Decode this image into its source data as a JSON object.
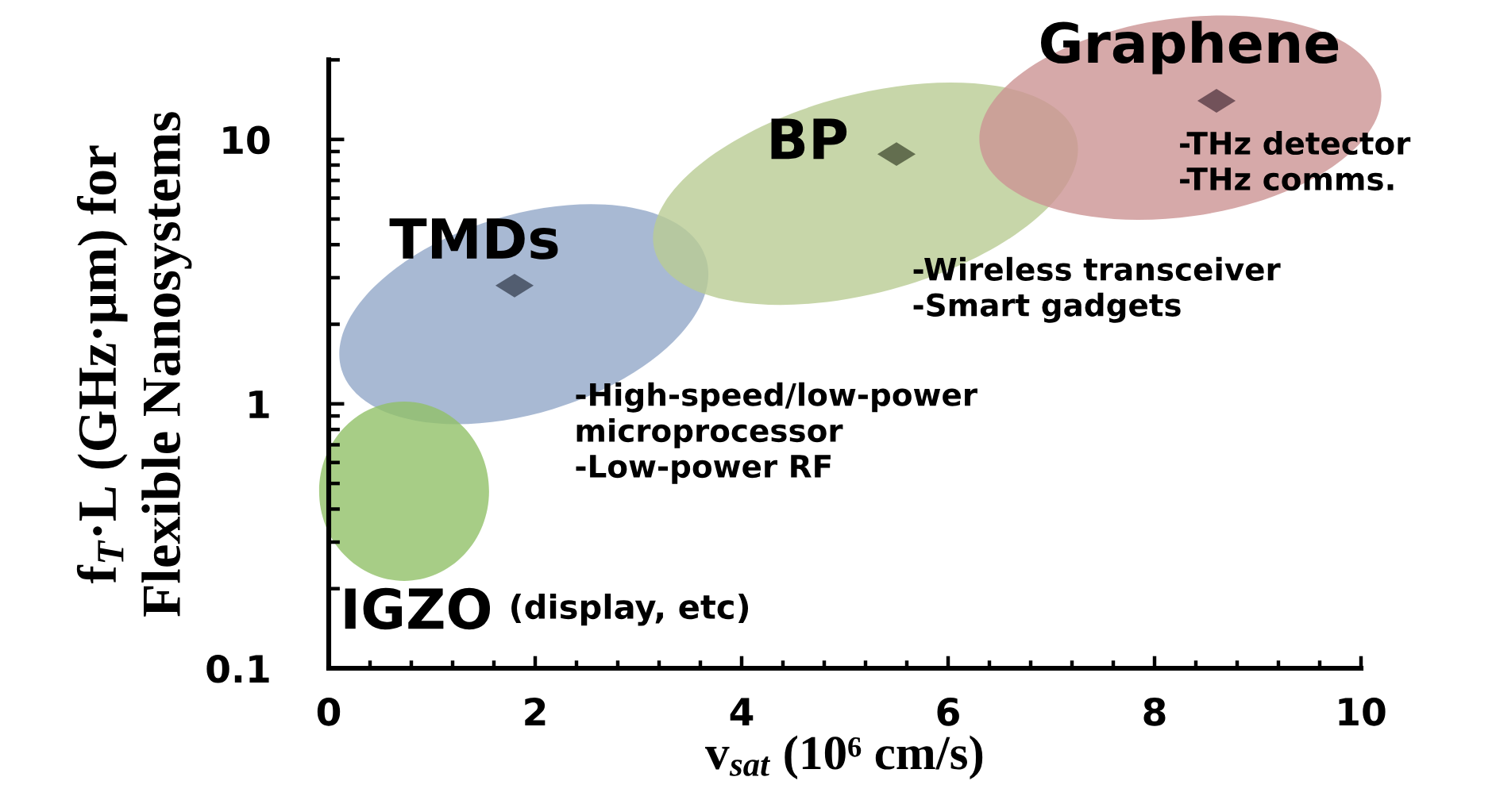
{
  "chart_data": {
    "type": "scatter",
    "xlabel": "v$_{sat}$ (10⁶ cm/s)",
    "ylabel": "f$_{T}$·L (GHz·μm) for\nFlexible Nanosystems",
    "log": "y",
    "xlim": [
      0,
      10
    ],
    "ylim": [
      0.1,
      20
    ],
    "xticks": [
      0,
      {
        "value": 0.4,
        "label": null
      },
      {
        "value": 0.8,
        "label": null
      },
      {
        "value": 1.2,
        "label": null
      },
      {
        "value": 1.6,
        "label": null
      },
      2,
      {
        "value": 2.4,
        "label": null
      },
      {
        "value": 2.8,
        "label": null
      },
      {
        "value": 3.2,
        "label": null
      },
      {
        "value": 3.6,
        "label": null
      },
      4,
      {
        "value": 4.4,
        "label": null
      },
      {
        "value": 4.8,
        "label": null
      },
      {
        "value": 5.2,
        "label": null
      },
      {
        "value": 5.6,
        "label": null
      },
      6,
      {
        "value": 6.4,
        "label": null
      },
      {
        "value": 6.8,
        "label": null
      },
      {
        "value": 7.2,
        "label": null
      },
      {
        "value": 7.6,
        "label": null
      },
      8,
      {
        "value": 8.4,
        "label": null
      },
      {
        "value": 8.8,
        "label": null
      },
      {
        "value": 9.2,
        "label": null
      },
      {
        "value": 9.6,
        "label": null
      },
      10
    ],
    "yticks": [
      0.1,
      {
        "value": 0.2,
        "label": null
      },
      {
        "value": 0.3,
        "label": null
      },
      {
        "value": 0.4,
        "label": null
      },
      {
        "value": 0.5,
        "label": null
      },
      {
        "value": 0.6,
        "label": null
      },
      {
        "value": 0.7,
        "label": null
      },
      {
        "value": 0.8,
        "label": null
      },
      {
        "value": 0.9,
        "label": null
      },
      1,
      {
        "value": 2,
        "label": null
      },
      {
        "value": 3,
        "label": null
      },
      {
        "value": 4,
        "label": null
      },
      {
        "value": 5,
        "label": null
      },
      {
        "value": 6,
        "label": null
      },
      {
        "value": 7,
        "label": null
      },
      {
        "value": 8,
        "label": null
      },
      {
        "value": 9,
        "label": null
      },
      10,
      {
        "value": 20,
        "label": null
      }
    ],
    "series": [
      {
        "marker": "diamond",
        "x": [
          1.8,
          5.5,
          8.6
        ],
        "values": [
          2.8,
          8.8,
          14
        ],
        "colors": [
          "#525d70",
          "#636e4f",
          "#72525a"
        ]
      }
    ],
    "annotations": [
      {
        "text": "Graphene",
        "x": 8.6,
        "y": 14
      },
      {
        "text": "BP",
        "x": 5.5,
        "y": 8.8
      },
      {
        "text": "TMDs",
        "x": 1.8,
        "y": 2.8
      },
      "IGZO",
      "(display, etc)",
      {
        "text": "-THz detector\n-THz comms.",
        "x": 8.6,
        "y": 14
      },
      "-Wireless transceiver\n-Smart gadgets",
      "-High-speed/low-power\nmicroprocessor\n-Low-power RF"
    ]
  }
}
